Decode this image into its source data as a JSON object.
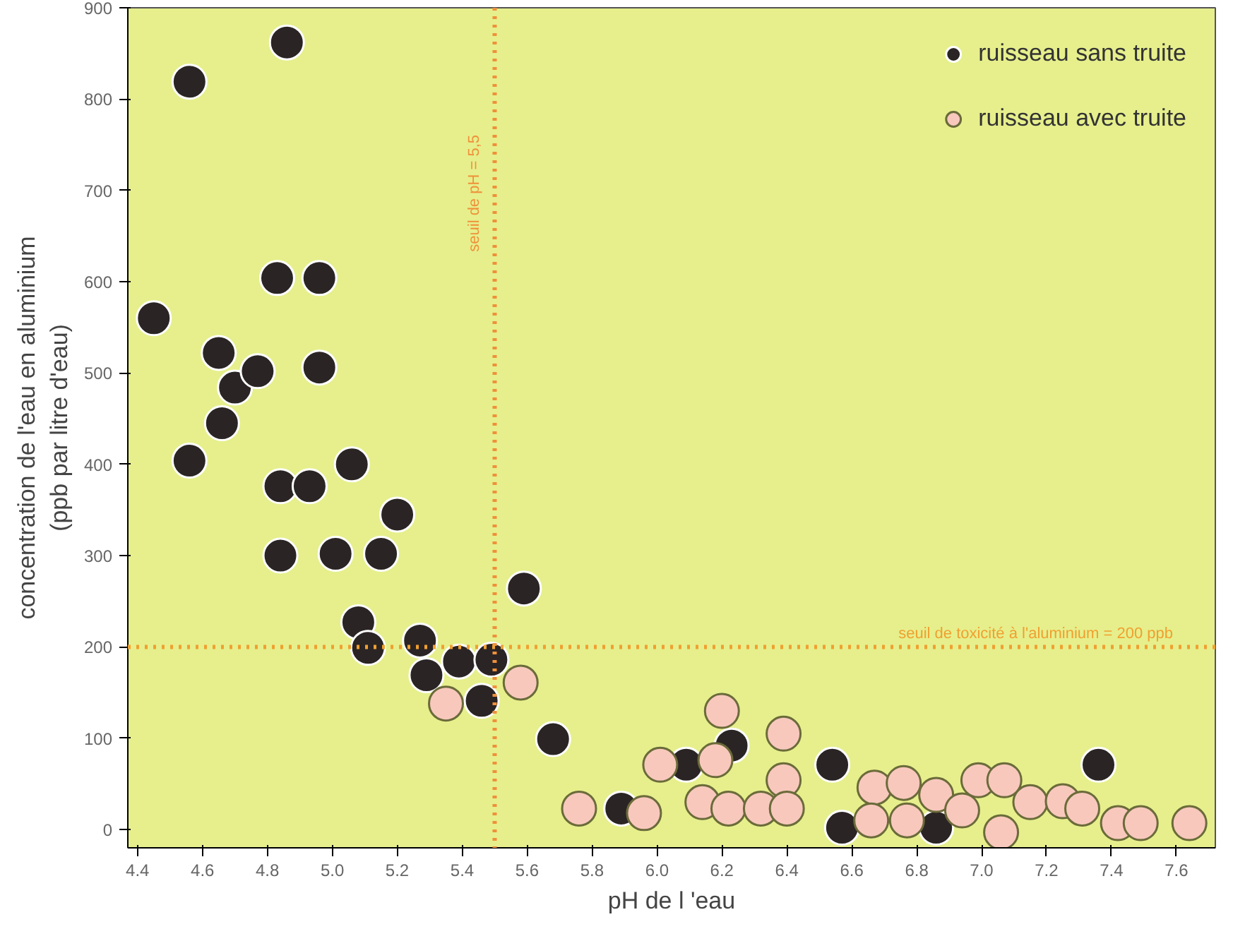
{
  "chart_data": {
    "type": "scatter",
    "xlabel": "pH de l 'eau",
    "ylabel": "concentration de l'eau en aluminium\n(ppb par litre d'eau)",
    "xlim": [
      4.37,
      7.72
    ],
    "ylim": [
      -20,
      900
    ],
    "xticks": [
      {
        "value": 4.4,
        "label": "4.4"
      },
      {
        "value": 4.6,
        "label": "4.6"
      },
      {
        "value": 4.8,
        "label": "4.8"
      },
      {
        "value": 5.0,
        "label": "5.0"
      },
      {
        "value": 5.2,
        "label": "5.2"
      },
      {
        "value": 5.4,
        "label": "5.4"
      },
      {
        "value": 5.6,
        "label": "5.6"
      },
      {
        "value": 5.8,
        "label": "5.8"
      },
      {
        "value": 6.0,
        "label": "6.0"
      },
      {
        "value": 6.2,
        "label": "6.2"
      },
      {
        "value": 6.4,
        "label": "6.4"
      },
      {
        "value": 6.6,
        "label": "6.6"
      },
      {
        "value": 6.8,
        "label": "6.8"
      },
      {
        "value": 7.0,
        "label": "7.0"
      },
      {
        "value": 7.2,
        "label": "7.2"
      },
      {
        "value": 7.4,
        "label": "7.4"
      },
      {
        "value": 7.6,
        "label": "7.6"
      }
    ],
    "yticks": [
      0,
      100,
      200,
      300,
      400,
      500,
      600,
      700,
      800,
      900
    ],
    "grid": false,
    "legend": "top right",
    "marker": "circle",
    "ref_lines": [
      {
        "axis": "x",
        "value": 5.5,
        "label": "seuil de pH = 5,5",
        "color": "#f0903a",
        "line_style": "dotted"
      },
      {
        "axis": "y",
        "value": 200,
        "label": "seuil de toxicité à l'aluminium = 200 ppb",
        "color": "#f0a030",
        "line_style": "dotted"
      }
    ],
    "series": [
      {
        "name": "ruisseau sans truite",
        "color": "#2b2424",
        "x": [
          4.45,
          4.56,
          4.86,
          4.56,
          4.65,
          4.66,
          4.7,
          4.77,
          4.83,
          4.96,
          4.96,
          5.06,
          4.84,
          4.93,
          5.2,
          4.84,
          5.01,
          5.15,
          5.08,
          5.11,
          5.27,
          5.29,
          5.39,
          5.49,
          5.46,
          5.59,
          5.68,
          5.89,
          6.09,
          6.23,
          6.54,
          6.57,
          6.86,
          7.36
        ],
        "values": [
          560,
          819,
          862,
          404,
          522,
          445,
          484,
          502,
          604,
          604,
          506,
          400,
          376,
          376,
          345,
          300,
          302,
          302,
          227,
          199,
          207,
          169,
          184,
          186,
          141,
          264,
          99,
          23,
          71,
          92,
          71,
          2,
          2,
          71
        ]
      },
      {
        "name": "ruisseau avec truite",
        "color": "#f8c8bd",
        "x": [
          5.35,
          5.58,
          5.76,
          5.96,
          6.01,
          6.2,
          6.18,
          6.14,
          6.22,
          6.32,
          6.39,
          6.39,
          6.4,
          6.67,
          6.66,
          6.76,
          6.77,
          6.86,
          6.94,
          6.99,
          7.07,
          7.06,
          7.15,
          7.25,
          7.31,
          7.42,
          7.49,
          7.64
        ],
        "values": [
          138,
          161,
          23,
          18,
          71,
          130,
          76,
          30,
          23,
          23,
          105,
          54,
          23,
          46,
          10,
          51,
          10,
          38,
          21,
          54,
          54,
          -3,
          30,
          31,
          23,
          7,
          7,
          7
        ]
      }
    ]
  }
}
